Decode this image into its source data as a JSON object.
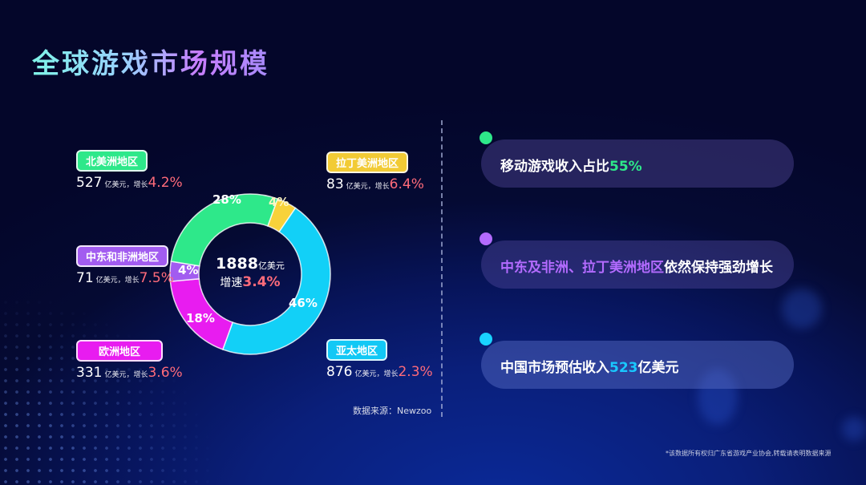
{
  "title": "全球游戏市场规模",
  "center": {
    "total": "1888",
    "total_unit": "亿美元",
    "growth_label": "增速",
    "growth_value": "3.4%"
  },
  "regions": [
    {
      "name": "北美洲地区",
      "amount": "527",
      "unit": "亿美元，增长",
      "growth": "4.2%",
      "share": "28%",
      "color": "#2ee88a"
    },
    {
      "name": "中东和非洲地区",
      "amount": "71",
      "unit": "亿美元，增长",
      "growth": "7.5%",
      "share": "4%",
      "color": "#a25cf0"
    },
    {
      "name": "欧洲地区",
      "amount": "331",
      "unit": "亿美元，增长",
      "growth": "3.6%",
      "share": "18%",
      "color": "#e81cf0"
    },
    {
      "name": "拉丁美洲地区",
      "amount": "83",
      "unit": "亿美元，增长",
      "growth": "6.4%",
      "share": "4%",
      "color": "#f7d23a"
    },
    {
      "name": "亚太地区",
      "amount": "876",
      "unit": "亿美元，增长",
      "growth": "2.3%",
      "share": "46%",
      "color": "#12d0f7"
    }
  ],
  "source": "数据来源：Newzoo",
  "highlights": [
    {
      "parts": [
        {
          "text": "移动游戏收入占比",
          "color": "#ffffff"
        },
        {
          "text": "55%",
          "color": "#2ee88a"
        }
      ],
      "dot_color": "#2ee88a"
    },
    {
      "parts": [
        {
          "text": "中东及非洲、拉丁美洲地区",
          "color": "#b36bff"
        },
        {
          "text": "依然保持强劲增长",
          "color": "#ffffff"
        }
      ],
      "dot_color": "#b36bff"
    },
    {
      "parts": [
        {
          "text": "中国市场预估收入",
          "color": "#ffffff"
        },
        {
          "text": "523",
          "color": "#19c8ff"
        },
        {
          "text": "亿美元",
          "color": "#ffffff"
        }
      ],
      "dot_color": "#19d3ff"
    }
  ],
  "note": "*该数据所有权归广东省游戏产业协会,转载请表明数据来源",
  "chart_data": {
    "type": "pie",
    "title": "全球游戏市场规模",
    "center_label": "1888亿美元 增速3.4%",
    "categories": [
      "拉丁美洲地区",
      "亚太地区",
      "欧洲地区",
      "中东和非洲地区",
      "北美洲地区"
    ],
    "values": [
      83,
      876,
      331,
      71,
      527
    ],
    "shares_pct": [
      4,
      46,
      18,
      4,
      28
    ],
    "growth_pct": [
      6.4,
      2.3,
      3.6,
      7.5,
      4.2
    ],
    "unit": "亿美元",
    "colors": [
      "#f7d23a",
      "#12d0f7",
      "#e81cf0",
      "#a25cf0",
      "#2ee88a"
    ],
    "donut": true,
    "source": "Newzoo"
  }
}
